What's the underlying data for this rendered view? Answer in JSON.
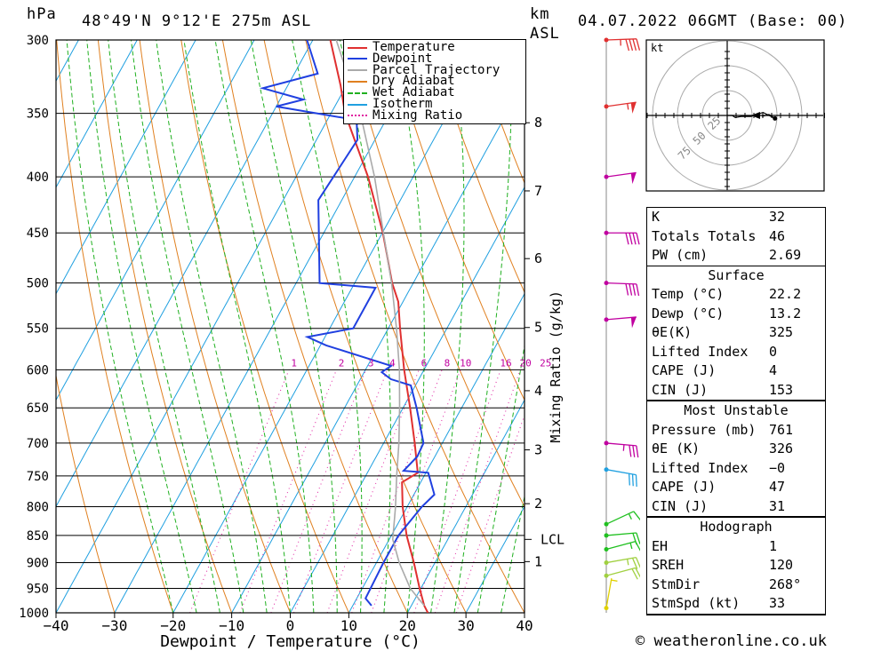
{
  "header": {
    "unit_hpa": "hPa",
    "location": "48°49'N  9°12'E  275m  ASL",
    "unit_km": "km",
    "unit_asl": "ASL",
    "datetime": "04.07.2022  06GMT  (Base: 00)"
  },
  "chart_data": {
    "type": "line",
    "title": "",
    "xlabel": "Dewpoint / Temperature (°C)",
    "ylabel": "hPa",
    "y2label": "Mixing Ratio (g/kg)",
    "xlim": [
      -40,
      40
    ],
    "ylim": [
      1000,
      300
    ],
    "x_ticks": [
      "−40",
      "−30",
      "−20",
      "−10",
      "0",
      "10",
      "20",
      "30",
      "40"
    ],
    "pressure_levels": [
      300,
      350,
      400,
      450,
      500,
      550,
      600,
      650,
      700,
      750,
      800,
      850,
      900,
      950,
      1000
    ],
    "km_labels": [
      {
        "km": "1",
        "p": 898
      },
      {
        "km": "2",
        "p": 795
      },
      {
        "km": "3",
        "p": 710
      },
      {
        "km": "4",
        "p": 627
      },
      {
        "km": "5",
        "p": 549
      },
      {
        "km": "6",
        "p": 475
      },
      {
        "km": "7",
        "p": 412
      },
      {
        "km": "8",
        "p": 357
      }
    ],
    "lcl": {
      "label": "LCL",
      "p": 857
    },
    "mixing_ratio_labels": [
      "1",
      "2",
      "3",
      "4",
      "6",
      "8",
      "10",
      "16",
      "20",
      "25"
    ],
    "legend": [
      {
        "name": "Temperature",
        "color": "#e03030"
      },
      {
        "name": "Dewpoint",
        "color": "#2040e0"
      },
      {
        "name": "Parcel Trajectory",
        "color": "#aaaaaa"
      },
      {
        "name": "Dry Adiabat",
        "color": "#e08020"
      },
      {
        "name": "Wet Adiabat",
        "color": "#20b020"
      },
      {
        "name": "Isotherm",
        "color": "#20a0e0"
      },
      {
        "name": "Mixing Ratio",
        "color": "#e020a0"
      }
    ],
    "series": [
      {
        "name": "Temperature",
        "color": "#e03030",
        "points": [
          [
            1000,
            23.5
          ],
          [
            985,
            22.2
          ],
          [
            950,
            19.8
          ],
          [
            900,
            16.4
          ],
          [
            850,
            12.6
          ],
          [
            800,
            9.2
          ],
          [
            760,
            6.8
          ],
          [
            745,
            8.6
          ],
          [
            700,
            5.3
          ],
          [
            650,
            1.2
          ],
          [
            600,
            -3.4
          ],
          [
            550,
            -8.0
          ],
          [
            520,
            -10.8
          ],
          [
            500,
            -13.6
          ],
          [
            450,
            -19.9
          ],
          [
            400,
            -27.7
          ],
          [
            350,
            -37.6
          ],
          [
            330,
            -41.0
          ],
          [
            300,
            -47.0
          ]
        ]
      },
      {
        "name": "Dewpoint",
        "color": "#2040e0",
        "points": [
          [
            985,
            13.2
          ],
          [
            970,
            11.5
          ],
          [
            900,
            11.2
          ],
          [
            850,
            11.2
          ],
          [
            800,
            12.5
          ],
          [
            780,
            13.5
          ],
          [
            745,
            10.4
          ],
          [
            742,
            6.0
          ],
          [
            720,
            7.0
          ],
          [
            700,
            6.8
          ],
          [
            650,
            2.3
          ],
          [
            620,
            -0.8
          ],
          [
            612,
            -4.8
          ],
          [
            603,
            -7.0
          ],
          [
            595,
            -6.0
          ],
          [
            570,
            -19.0
          ],
          [
            560,
            -23.0
          ],
          [
            550,
            -16.0
          ],
          [
            505,
            -16.0
          ],
          [
            500,
            -26.0
          ],
          [
            420,
            -34.0
          ],
          [
            370,
            -33.0
          ],
          [
            355,
            -35.0
          ],
          [
            345,
            -50.0
          ],
          [
            340,
            -46.0
          ],
          [
            332,
            -54.0
          ],
          [
            322,
            -46.0
          ],
          [
            300,
            -51.0
          ]
        ]
      },
      {
        "name": "Parcel Trajectory",
        "color": "#aaaaaa",
        "points": [
          [
            985,
            22.2
          ],
          [
            950,
            18.2
          ],
          [
            900,
            13.9
          ],
          [
            857,
            10.6
          ],
          [
            800,
            8.0
          ],
          [
            750,
            5.3
          ],
          [
            700,
            2.6
          ],
          [
            650,
            -0.6
          ],
          [
            600,
            -4.2
          ],
          [
            550,
            -8.6
          ],
          [
            500,
            -13.7
          ],
          [
            450,
            -19.8
          ],
          [
            400,
            -26.6
          ],
          [
            350,
            -35.0
          ],
          [
            300,
            -46.0
          ]
        ]
      }
    ],
    "wind_barbs": [
      {
        "p": 300,
        "dir": 268,
        "kt": 45,
        "color": "#e03030"
      },
      {
        "p": 345,
        "dir": 262,
        "kt": 55,
        "color": "#e03030"
      },
      {
        "p": 400,
        "dir": 262,
        "kt": 50,
        "color": "#c000a0"
      },
      {
        "p": 450,
        "dir": 270,
        "kt": 40,
        "color": "#c000a0"
      },
      {
        "p": 500,
        "dir": 272,
        "kt": 40,
        "color": "#c000a0"
      },
      {
        "p": 540,
        "dir": 265,
        "kt": 50,
        "color": "#c000a0"
      },
      {
        "p": 700,
        "dir": 275,
        "kt": 35,
        "color": "#c000a0"
      },
      {
        "p": 740,
        "dir": 280,
        "kt": 30,
        "color": "#20a0e0"
      },
      {
        "p": 830,
        "dir": 245,
        "kt": 15,
        "color": "#20c020"
      },
      {
        "p": 850,
        "dir": 265,
        "kt": 20,
        "color": "#20c020"
      },
      {
        "p": 875,
        "dir": 255,
        "kt": 15,
        "color": "#20c020"
      },
      {
        "p": 900,
        "dir": 260,
        "kt": 25,
        "color": "#a0d040"
      },
      {
        "p": 925,
        "dir": 255,
        "kt": 20,
        "color": "#a0d040"
      },
      {
        "p": 990,
        "dir": 190,
        "kt": 5,
        "color": "#e0d000"
      }
    ],
    "hodograph": {
      "unit": "kt",
      "rings": [
        "25",
        "50",
        "75"
      ],
      "points": [
        [
          0,
          0
        ],
        [
          5,
          0
        ],
        [
          8,
          -2
        ],
        [
          14,
          -1
        ],
        [
          24,
          -1
        ],
        [
          36,
          3
        ],
        [
          48,
          -3
        ],
        [
          42,
          1
        ],
        [
          35,
          -1
        ]
      ]
    }
  },
  "indices": [
    {
      "label": "K",
      "value": "32"
    },
    {
      "label": "Totals Totals",
      "value": "46"
    },
    {
      "label": "PW (cm)",
      "value": "2.69"
    }
  ],
  "surface": {
    "title": "Surface",
    "rows": [
      {
        "label": "Temp (°C)",
        "value": "22.2"
      },
      {
        "label": "Dewp (°C)",
        "value": "13.2"
      },
      {
        "label": "θE(K)",
        "value": "325"
      },
      {
        "label": "Lifted Index",
        "value": "0"
      },
      {
        "label": "CAPE (J)",
        "value": "4"
      },
      {
        "label": "CIN (J)",
        "value": "153"
      }
    ]
  },
  "most_unstable": {
    "title": "Most Unstable",
    "rows": [
      {
        "label": "Pressure (mb)",
        "value": "761"
      },
      {
        "label": "θE (K)",
        "value": "326"
      },
      {
        "label": "Lifted Index",
        "value": "−0"
      },
      {
        "label": "CAPE (J)",
        "value": "47"
      },
      {
        "label": "CIN (J)",
        "value": "31"
      }
    ]
  },
  "hodograph_table": {
    "title": "Hodograph",
    "rows": [
      {
        "label": "EH",
        "value": "1"
      },
      {
        "label": "SREH",
        "value": "120"
      },
      {
        "label": "StmDir",
        "value": "268°"
      },
      {
        "label": "StmSpd (kt)",
        "value": "33"
      }
    ]
  },
  "credit": "© weatheronline.co.uk"
}
